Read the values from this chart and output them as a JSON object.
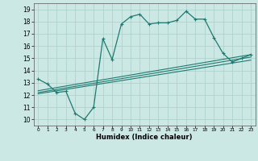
{
  "xlabel": "Humidex (Indice chaleur)",
  "ylabel": "",
  "xlim": [
    -0.5,
    23.5
  ],
  "ylim": [
    9.5,
    19.5
  ],
  "xticks": [
    0,
    1,
    2,
    3,
    4,
    5,
    6,
    7,
    8,
    9,
    10,
    11,
    12,
    13,
    14,
    15,
    16,
    17,
    18,
    19,
    20,
    21,
    22,
    23
  ],
  "yticks": [
    10,
    11,
    12,
    13,
    14,
    15,
    16,
    17,
    18,
    19
  ],
  "bg_color": "#cce8e4",
  "line_color": "#1e7a70",
  "grid_color": "#aacfca",
  "line1_x": [
    0,
    1,
    2,
    3,
    4,
    5,
    6,
    7,
    8,
    9,
    10,
    11,
    12,
    13,
    14,
    15,
    16,
    17,
    18,
    19,
    20,
    21,
    22,
    23
  ],
  "line1_y": [
    13.3,
    12.9,
    12.2,
    12.3,
    10.5,
    10.0,
    11.0,
    16.6,
    14.9,
    17.8,
    18.4,
    18.6,
    17.8,
    17.9,
    17.9,
    18.1,
    18.85,
    18.2,
    18.2,
    16.7,
    15.4,
    14.7,
    15.0,
    15.3
  ],
  "line2_x": [
    0,
    23
  ],
  "line2_y": [
    12.35,
    15.3
  ],
  "line3_x": [
    0,
    23
  ],
  "line3_y": [
    12.2,
    15.1
  ],
  "line4_x": [
    0,
    23
  ],
  "line4_y": [
    12.1,
    14.85
  ]
}
